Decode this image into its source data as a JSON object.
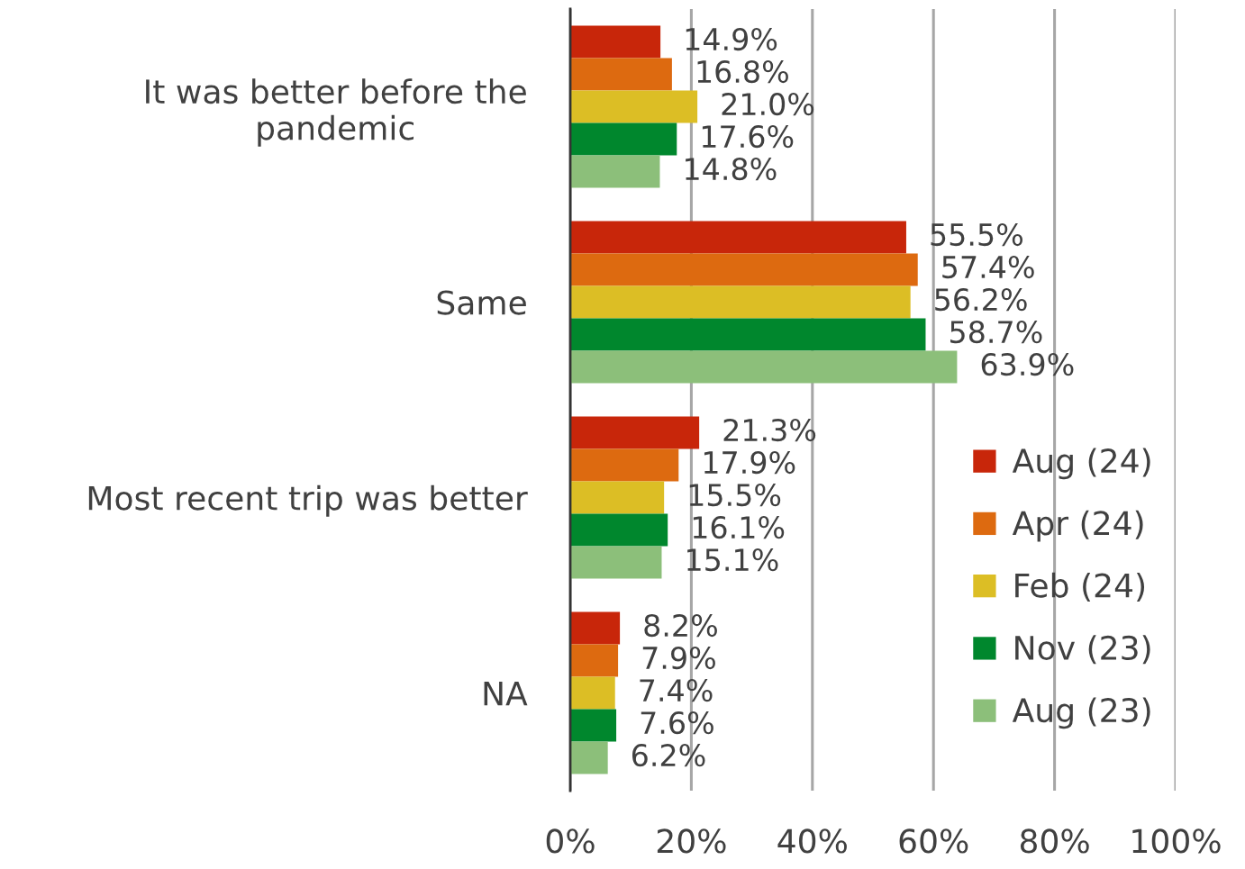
{
  "chart_data": {
    "type": "bar",
    "orientation": "horizontal",
    "categories": [
      "It was better before the\npandemic",
      "Same",
      "Most recent trip was better",
      "NA"
    ],
    "series": [
      {
        "name": "Aug (24)",
        "color": "#c8260a",
        "values": [
          14.9,
          55.5,
          21.3,
          8.2
        ],
        "value_labels": [
          "14.9%",
          "55.5%",
          "21.3%",
          "8.2%"
        ]
      },
      {
        "name": "Apr (24)",
        "color": "#dd6a10",
        "values": [
          16.8,
          57.4,
          17.9,
          7.9
        ],
        "value_labels": [
          "16.8%",
          "57.4%",
          "17.9%",
          "7.9%"
        ]
      },
      {
        "name": "Feb (24)",
        "color": "#dcbe25",
        "values": [
          21.0,
          56.2,
          15.5,
          7.4
        ],
        "value_labels": [
          "21.0%",
          "56.2%",
          "15.5%",
          "7.4%"
        ]
      },
      {
        "name": "Nov (23)",
        "color": "#00872d",
        "values": [
          17.6,
          58.7,
          16.1,
          7.6
        ],
        "value_labels": [
          "17.6%",
          "58.7%",
          "16.1%",
          "7.6%"
        ]
      },
      {
        "name": "Aug (23)",
        "color": "#8cbf7a",
        "values": [
          14.8,
          63.9,
          15.1,
          6.2
        ],
        "value_labels": [
          "14.8%",
          "63.9%",
          "15.1%",
          "6.2%"
        ]
      }
    ],
    "xlim": [
      0,
      100
    ],
    "xticks": [
      {
        "value": 0,
        "label": "0%"
      },
      {
        "value": 20,
        "label": "20%"
      },
      {
        "value": 40,
        "label": "40%"
      },
      {
        "value": 60,
        "label": "60%"
      },
      {
        "value": 80,
        "label": "80%"
      },
      {
        "value": 100,
        "label": "100%"
      }
    ],
    "grid": "x",
    "legend": "bottom right"
  }
}
